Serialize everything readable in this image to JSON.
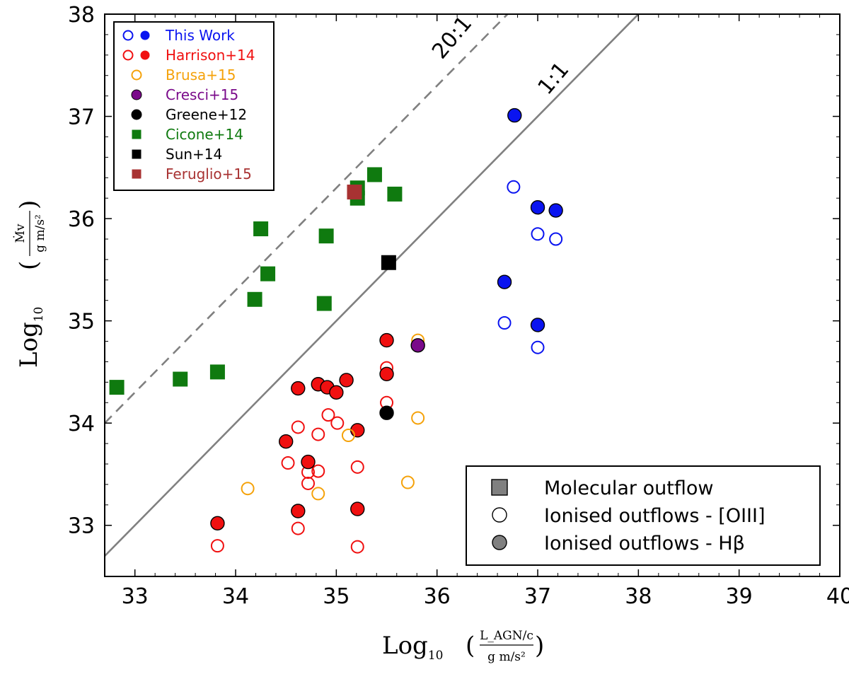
{
  "chart_data": {
    "type": "scatter",
    "xlabel": {
      "prefix": "Log",
      "sub": "10",
      "numerator": "L_AGN/c",
      "denominator": "g m/s²"
    },
    "ylabel": {
      "prefix": "Log",
      "sub": "10",
      "numerator": "Ṁv",
      "denominator": "g m/s²"
    },
    "xlim": [
      32.7,
      40
    ],
    "ylim": [
      32.5,
      38
    ],
    "xticks": [
      "33",
      "34",
      "35",
      "36",
      "37",
      "38",
      "39",
      "40"
    ],
    "yticks": [
      "33",
      "34",
      "35",
      "36",
      "37",
      "38"
    ],
    "colors": {
      "blue": "#0a14f0",
      "red": "#f01010",
      "orange": "#f5a20a",
      "purple": "#7a0a8a",
      "black": "#000000",
      "green": "#0f7a0f",
      "brown": "#a83232",
      "gray": "#808080"
    },
    "reference_lines": [
      {
        "label": "20:1",
        "style": "dashed",
        "offset_dex": 1.3
      },
      {
        "label": "1:1",
        "style": "solid",
        "offset_dex": 0.0
      }
    ],
    "legend_sources": [
      {
        "label": "This Work",
        "color": "#0a14f0",
        "symbols": [
          "open-circle",
          "filled-circle"
        ]
      },
      {
        "label": "Harrison+14",
        "color": "#f01010",
        "symbols": [
          "open-circle",
          "filled-circle"
        ]
      },
      {
        "label": "Brusa+15",
        "color": "#f5a20a",
        "symbols": [
          "open-circle"
        ]
      },
      {
        "label": "Cresci+15",
        "color": "#7a0a8a",
        "symbols": [
          "filled-circle"
        ]
      },
      {
        "label": "Greene+12",
        "color": "#000000",
        "symbols": [
          "filled-circle"
        ]
      },
      {
        "label": "Cicone+14",
        "color": "#0f7a0f",
        "symbols": [
          "square"
        ]
      },
      {
        "label": "Sun+14",
        "color": "#000000",
        "symbols": [
          "square"
        ]
      },
      {
        "label": "Feruglio+15",
        "color": "#a83232",
        "symbols": [
          "square"
        ]
      }
    ],
    "legend_types": [
      {
        "label": "Molecular outflow",
        "symbol": "square"
      },
      {
        "label": "Ionised outflows - [OIII]",
        "symbol": "open-circle"
      },
      {
        "label": "Ionised outflows - Hβ",
        "symbol": "filled-circle"
      }
    ],
    "series": [
      {
        "name": "This Work [OIII]",
        "color": "#0a14f0",
        "marker": "open-circle",
        "points": [
          [
            36.76,
            36.31
          ],
          [
            37.0,
            35.85
          ],
          [
            37.18,
            35.8
          ],
          [
            36.67,
            34.98
          ],
          [
            37.0,
            34.74
          ]
        ]
      },
      {
        "name": "This Work Hβ",
        "color": "#0a14f0",
        "marker": "filled-circle",
        "points": [
          [
            36.77,
            37.01
          ],
          [
            37.0,
            36.11
          ],
          [
            37.18,
            36.08
          ],
          [
            36.67,
            35.38
          ],
          [
            37.0,
            34.96
          ]
        ]
      },
      {
        "name": "Harrison+14 [OIII]",
        "color": "#f01010",
        "marker": "open-circle",
        "points": [
          [
            35.5,
            34.54
          ],
          [
            35.5,
            34.2
          ],
          [
            34.92,
            34.08
          ],
          [
            35.01,
            34.0
          ],
          [
            34.62,
            33.96
          ],
          [
            34.82,
            33.89
          ],
          [
            34.52,
            33.61
          ],
          [
            35.21,
            33.57
          ],
          [
            34.72,
            33.52
          ],
          [
            34.82,
            33.53
          ],
          [
            34.72,
            33.41
          ],
          [
            34.62,
            32.97
          ],
          [
            33.82,
            32.8
          ],
          [
            35.21,
            32.79
          ]
        ]
      },
      {
        "name": "Harrison+14 Hβ",
        "color": "#f01010",
        "marker": "filled-circle",
        "points": [
          [
            35.5,
            34.81
          ],
          [
            35.5,
            34.48
          ],
          [
            34.62,
            34.34
          ],
          [
            34.82,
            34.38
          ],
          [
            34.91,
            34.35
          ],
          [
            35.1,
            34.42
          ],
          [
            35.0,
            34.3
          ],
          [
            35.21,
            33.93
          ],
          [
            34.5,
            33.82
          ],
          [
            34.72,
            33.62
          ],
          [
            34.62,
            33.14
          ],
          [
            35.21,
            33.16
          ],
          [
            33.82,
            33.02
          ]
        ]
      },
      {
        "name": "Brusa+15",
        "color": "#f5a20a",
        "marker": "open-circle",
        "points": [
          [
            35.81,
            34.81
          ],
          [
            35.81,
            34.05
          ],
          [
            35.12,
            33.88
          ],
          [
            34.12,
            33.36
          ],
          [
            34.82,
            33.31
          ],
          [
            35.71,
            33.42
          ]
        ]
      },
      {
        "name": "Cresci+15",
        "color": "#7a0a8a",
        "marker": "filled-circle",
        "points": [
          [
            35.81,
            34.76
          ]
        ]
      },
      {
        "name": "Greene+12",
        "color": "#000000",
        "marker": "filled-circle",
        "points": [
          [
            35.5,
            34.1
          ]
        ]
      },
      {
        "name": "Cicone+14",
        "color": "#0f7a0f",
        "marker": "square",
        "points": [
          [
            32.82,
            34.35
          ],
          [
            33.45,
            34.43
          ],
          [
            33.82,
            34.5
          ],
          [
            34.25,
            35.9
          ],
          [
            34.32,
            35.46
          ],
          [
            34.19,
            35.21
          ],
          [
            34.9,
            35.83
          ],
          [
            34.88,
            35.17
          ],
          [
            35.21,
            36.3
          ],
          [
            35.21,
            36.2
          ],
          [
            35.38,
            36.43
          ],
          [
            35.58,
            36.24
          ]
        ]
      },
      {
        "name": "Sun+14",
        "color": "#000000",
        "marker": "square",
        "points": [
          [
            35.52,
            35.57
          ]
        ]
      },
      {
        "name": "Feruglio+15",
        "color": "#a83232",
        "marker": "square",
        "points": [
          [
            35.18,
            36.26
          ]
        ]
      }
    ]
  }
}
